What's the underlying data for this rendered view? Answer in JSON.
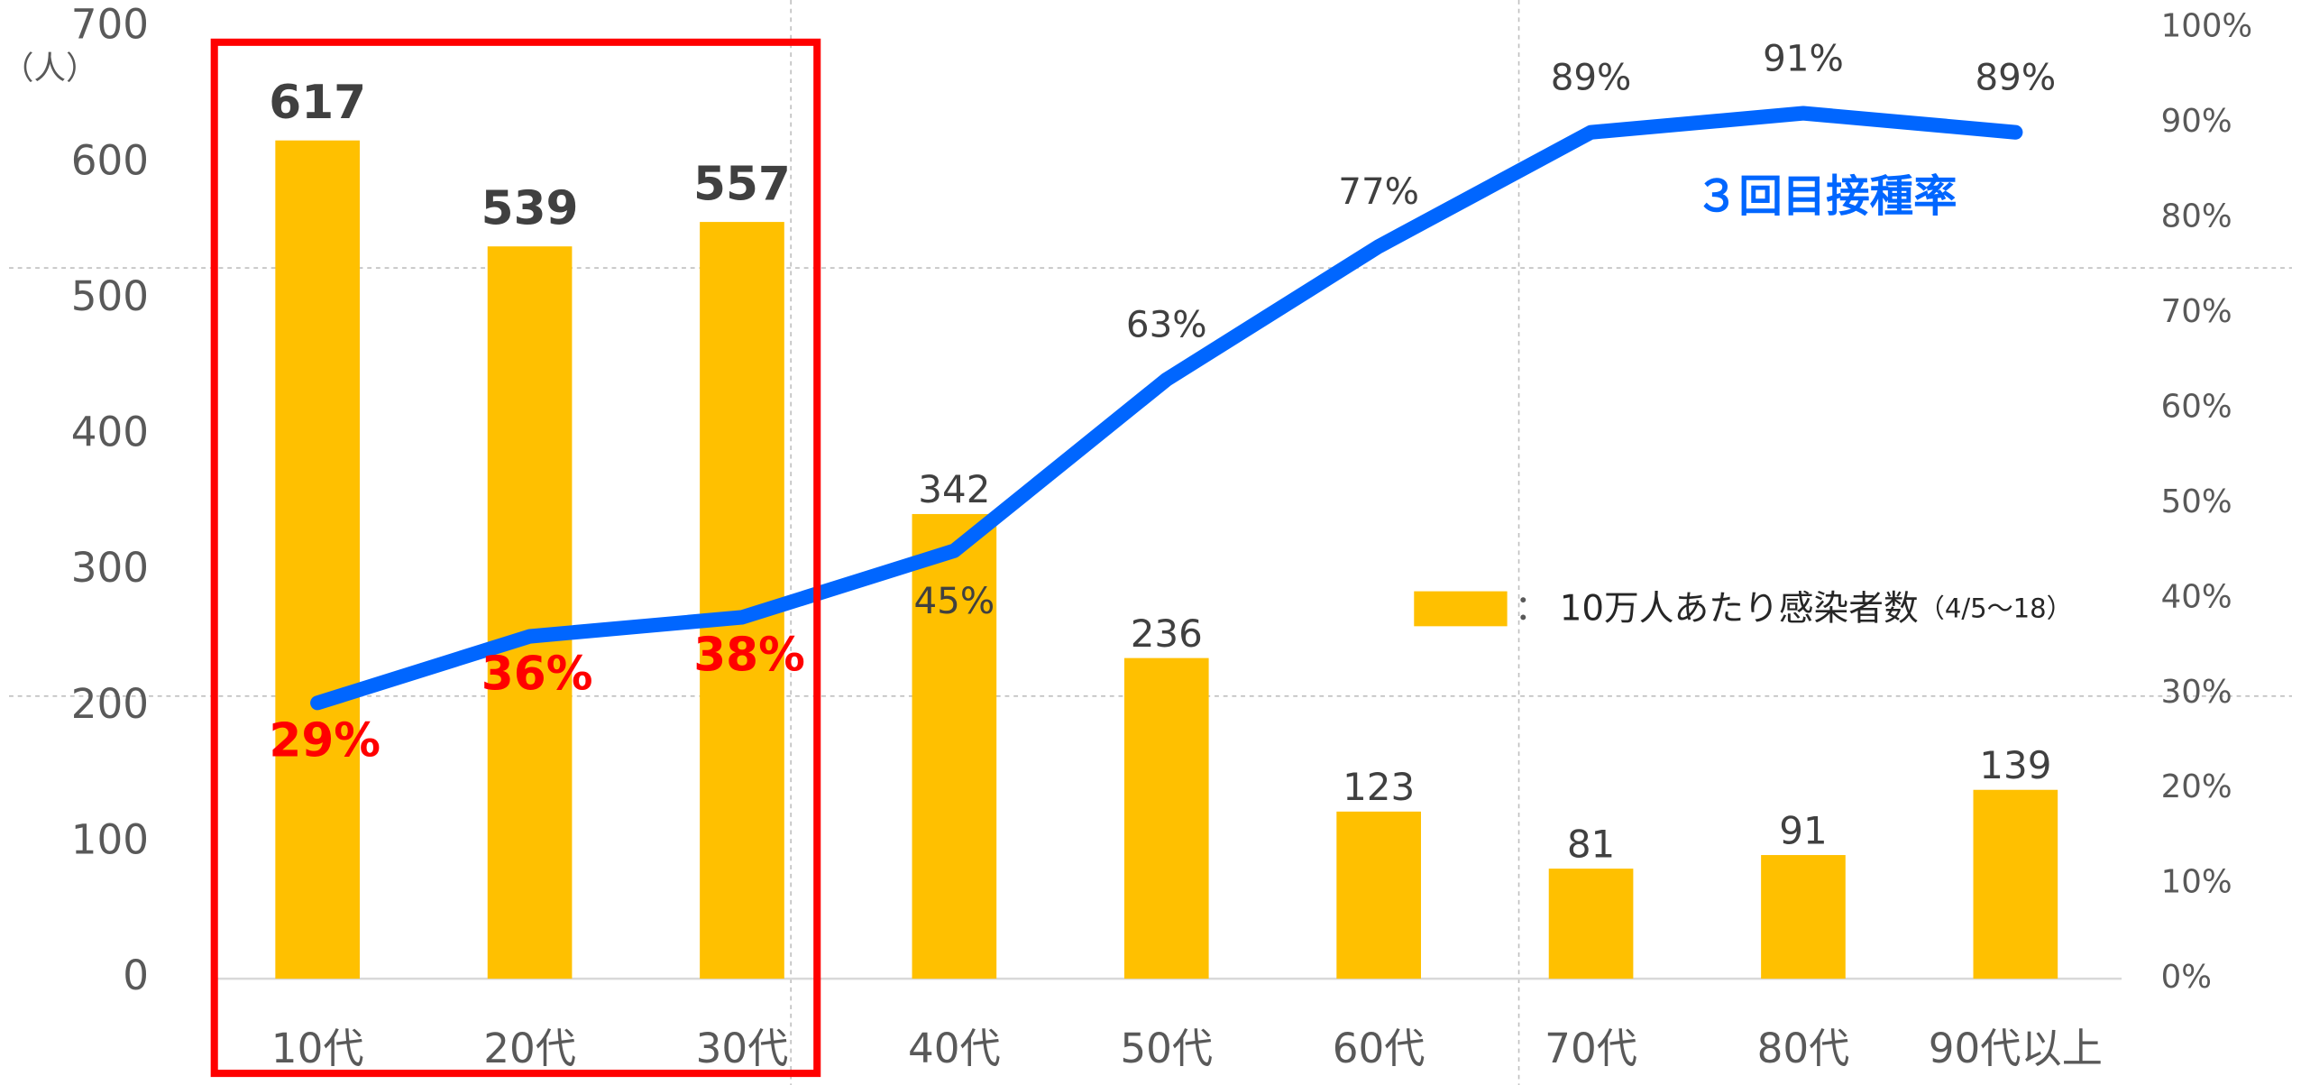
{
  "chart_data": {
    "type": "bar",
    "categories": [
      "10代",
      "20代",
      "30代",
      "40代",
      "50代",
      "60代",
      "70代",
      "80代",
      "90代以上"
    ],
    "series": [
      {
        "name": "10万人あたり感染者数",
        "color": "#ffc000",
        "values": [
          617,
          539,
          557,
          342,
          236,
          123,
          81,
          91,
          139
        ]
      },
      {
        "name": "３回目接種率",
        "color": "#0066ff",
        "type": "line",
        "axis": "y2",
        "values": [
          29,
          36,
          38,
          45,
          63,
          77,
          89,
          91,
          89
        ],
        "value_labels": [
          "29%",
          "36%",
          "38%",
          "45%",
          "63%",
          "77%",
          "89%",
          "91%",
          "89%"
        ]
      }
    ],
    "legend_note": "（4/5～18）",
    "y_unit": "（人）",
    "ylim": [
      0,
      700
    ],
    "yticks": [
      0,
      100,
      200,
      300,
      400,
      500,
      600,
      700
    ],
    "y2lim": [
      0,
      100
    ],
    "y2ticks": [
      {
        "value": 0,
        "label": "0%"
      },
      {
        "value": 10,
        "label": "10%"
      },
      {
        "value": 20,
        "label": "20%"
      },
      {
        "value": 30,
        "label": "30%"
      },
      {
        "value": 40,
        "label": "40%"
      },
      {
        "value": 50,
        "label": "50%"
      },
      {
        "value": 60,
        "label": "60%"
      },
      {
        "value": 70,
        "label": "70%"
      },
      {
        "value": 80,
        "label": "80%"
      },
      {
        "value": 90,
        "label": "90%"
      },
      {
        "value": 100,
        "label": "100%"
      }
    ]
  }
}
